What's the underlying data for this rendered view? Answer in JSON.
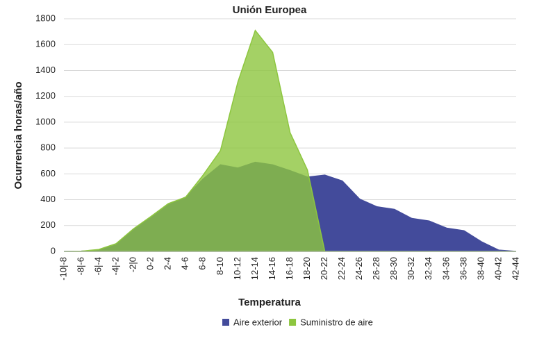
{
  "chart_data": {
    "type": "area",
    "title": "Unión Europea",
    "x_label": "Temperatura",
    "y_label": "Ocurrencia horas/año",
    "categories": [
      "-10|-8",
      "-8|-6",
      "-6|-4",
      "-4|-2",
      "-2|0",
      "0-2",
      "2-4",
      "4-6",
      "6-8",
      "8-10",
      "10-12",
      "12-14",
      "14-16",
      "16-18",
      "18-20",
      "20-22",
      "22-24",
      "24-26",
      "26-28",
      "28-30",
      "30-32",
      "32-34",
      "34-36",
      "36-38",
      "38-40",
      "40-42",
      "42-44"
    ],
    "series": [
      {
        "name": "Aire exterior",
        "color": "#434b9b",
        "values": [
          0,
          2,
          10,
          50,
          170,
          260,
          360,
          420,
          560,
          670,
          645,
          690,
          670,
          625,
          575,
          590,
          545,
          405,
          345,
          325,
          255,
          235,
          180,
          160,
          75,
          10,
          0
        ]
      },
      {
        "name": "Suministro de aire",
        "color": "#8dc63f",
        "values": [
          0,
          2,
          15,
          60,
          175,
          270,
          370,
          420,
          590,
          780,
          1310,
          1710,
          1540,
          920,
          630,
          0,
          0,
          0,
          0,
          0,
          0,
          0,
          0,
          0,
          0,
          0,
          0
        ]
      }
    ],
    "ylim": [
      0,
      1800
    ],
    "yticks": [
      0,
      200,
      400,
      600,
      800,
      1000,
      1200,
      1400,
      1600,
      1800
    ],
    "grid": true,
    "legend": "bottom"
  }
}
